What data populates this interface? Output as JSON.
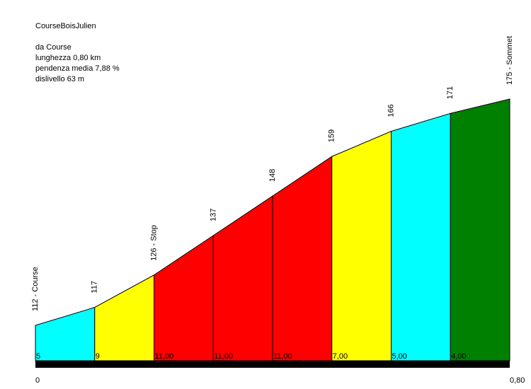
{
  "info": {
    "name": "CourseBoisJulien",
    "from": "da Course",
    "length": "lunghezza 0,80 km",
    "gradient": "pendenza media 7,88 %",
    "climb": "dislivello 63 m"
  },
  "chart_data": {
    "type": "area",
    "title": "CourseBoisJulien",
    "xlabel": "",
    "ylabel": "",
    "xlim": [
      0,
      0.8
    ],
    "x_tick_labels": [
      "0",
      "0,80"
    ],
    "points": [
      {
        "x": 0.0,
        "y": 112,
        "label": "112 - Course"
      },
      {
        "x": 0.1,
        "y": 117,
        "label": "117"
      },
      {
        "x": 0.2,
        "y": 126,
        "label": "126 - Stop"
      },
      {
        "x": 0.3,
        "y": 137,
        "label": "137"
      },
      {
        "x": 0.4,
        "y": 148,
        "label": "148"
      },
      {
        "x": 0.5,
        "y": 159,
        "label": "159"
      },
      {
        "x": 0.6,
        "y": 166,
        "label": "166"
      },
      {
        "x": 0.7,
        "y": 171,
        "label": "171"
      },
      {
        "x": 0.8,
        "y": 175,
        "label": "175 - Sommet"
      }
    ],
    "segments": [
      {
        "gradient": "5",
        "color": "#00ffff"
      },
      {
        "gradient": "9",
        "color": "#ffff00"
      },
      {
        "gradient": "11,00",
        "color": "#ff0000"
      },
      {
        "gradient": "11,00",
        "color": "#ff0000"
      },
      {
        "gradient": "11,00",
        "color": "#ff0000"
      },
      {
        "gradient": "7,00",
        "color": "#ffff00"
      },
      {
        "gradient": "5,00",
        "color": "#00ffff"
      },
      {
        "gradient": "4,00",
        "color": "#008000"
      }
    ]
  }
}
